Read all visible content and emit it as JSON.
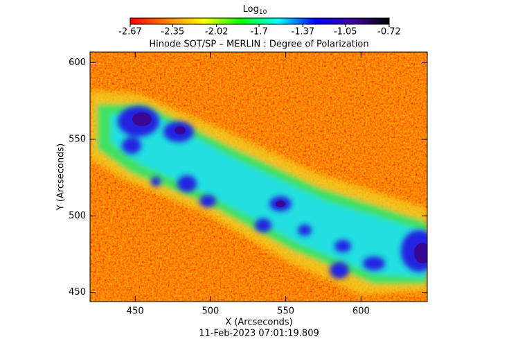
{
  "chart_data": {
    "type": "heatmap",
    "title": "Hinode SOT/SP – MERLIN : Degree of Polarization",
    "x_label": "X (Arcseconds)",
    "y_label": "Y (Arcseconds)",
    "footer": "11-Feb-2023 07:01:19.809",
    "xlim": [
      420,
      644
    ],
    "ylim": [
      444,
      607
    ],
    "xticks": [
      450,
      500,
      550,
      600
    ],
    "yticks": [
      450,
      500,
      550,
      600
    ],
    "colorbar": {
      "label": "Log",
      "label_sub": "10",
      "range": [
        -2.67,
        -0.72
      ],
      "ticks": [
        -2.67,
        -2.35,
        -2.02,
        -1.7,
        -1.37,
        -1.05,
        -0.72
      ],
      "colors": [
        "#ff0000",
        "#ff8000",
        "#ffff00",
        "#00ff00",
        "#00ffff",
        "#0000ff",
        "#4000a0",
        "#000000"
      ]
    }
  }
}
